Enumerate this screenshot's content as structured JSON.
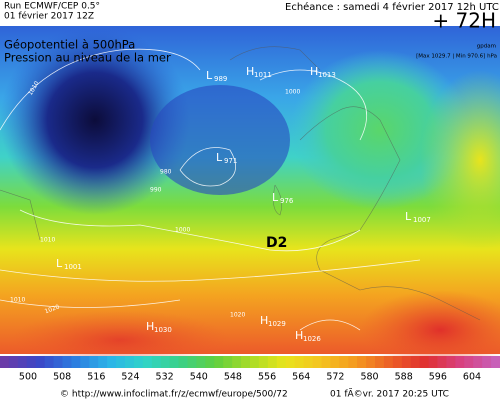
{
  "header": {
    "run": "Run ECMWF/CEP 0.5°",
    "run_date": "01 février 2017 12Z",
    "valid": "Echéance : samedi 4 février 2017 12h UTC",
    "lead": "+ 72H"
  },
  "titles": [
    "Géopotentiel à 500hPa",
    "Pression au niveau de la mer"
  ],
  "units": "gpdam",
  "extremes": "[Max 1029.7 | Min 970.6] hPa",
  "systems": [
    {
      "letter": "L",
      "pressure": "989"
    },
    {
      "letter": "H",
      "pressure": "1011"
    },
    {
      "letter": "H",
      "pressure": "1013"
    },
    {
      "letter": "L",
      "pressure": "971"
    },
    {
      "letter": "L",
      "pressure": "976"
    },
    {
      "letter": "L",
      "pressure": "1007"
    },
    {
      "letter": "L",
      "pressure": "1001"
    },
    {
      "letter": "H",
      "pressure": "1030"
    },
    {
      "letter": "H",
      "pressure": "1029"
    },
    {
      "letter": "H",
      "pressure": "1026"
    }
  ],
  "isobar_labels": [
    "1010",
    "1010",
    "990",
    "980",
    "1000",
    "1000",
    "1010",
    "1020",
    "1020"
  ],
  "marker": "D2",
  "colorbar": [
    "500",
    "508",
    "516",
    "524",
    "532",
    "540",
    "548",
    "556",
    "564",
    "572",
    "580",
    "588",
    "596",
    "604"
  ],
  "footer": {
    "source": "© http://www.infoclimat.fr/z/ecmwf/europe/500/72",
    "generated": "01 fÃ©vr. 2017 20:25 UTC"
  }
}
